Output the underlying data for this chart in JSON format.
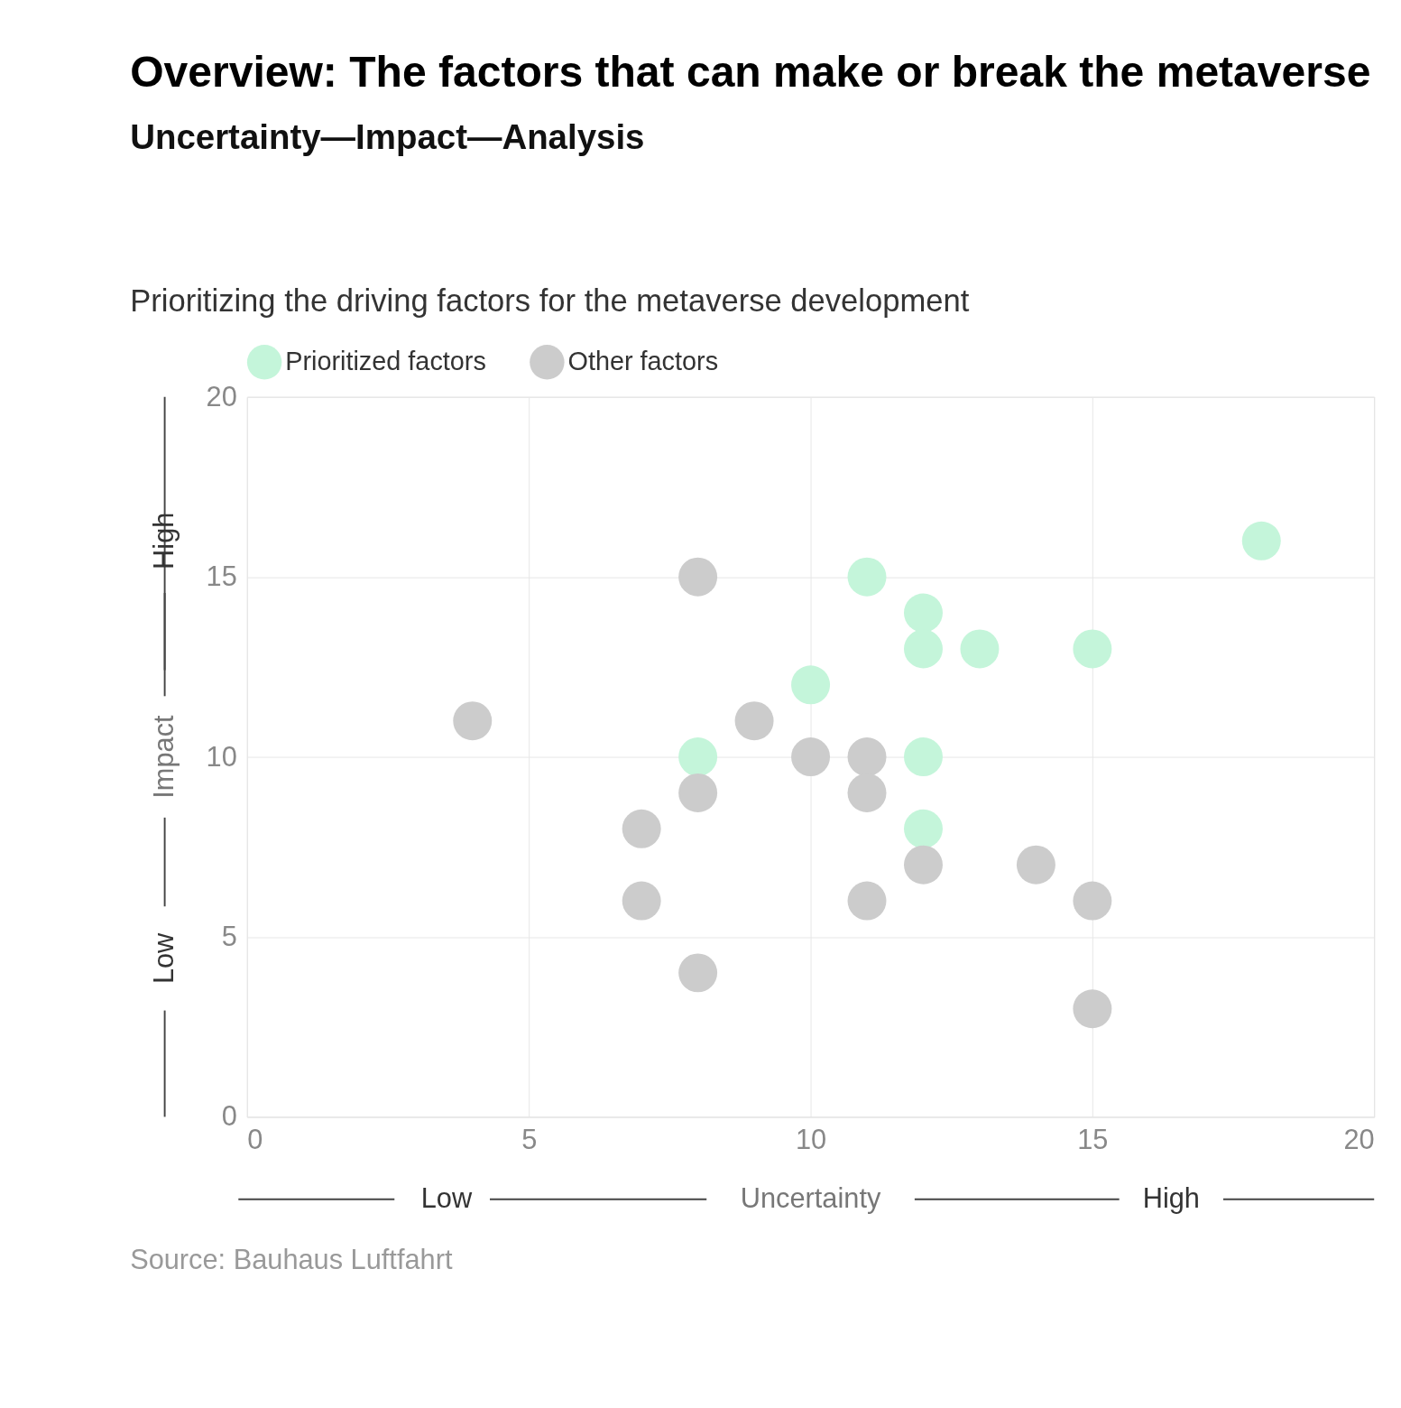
{
  "chart_data": {
    "type": "scatter",
    "title": "Overview: The factors that can make or break the metaverse",
    "subtitle": "Uncertainty—Impact—Analysis",
    "xlabel": "Uncertainty",
    "ylabel": "Impact",
    "annotations": [
      "Prioritizing the driving factors for the metaverse development",
      "Low",
      "High",
      "Low",
      "High",
      "Source: Bauhaus Luftfahrt"
    ],
    "series": [
      {
        "name": "Prioritized factors",
        "color": "#c4f5da",
        "x": [
          11,
          12,
          12,
          13,
          15,
          10,
          8,
          12,
          12,
          18
        ],
        "values": [
          15,
          14,
          13,
          13,
          13,
          12,
          10,
          10,
          8,
          16
        ]
      },
      {
        "name": "Other factors",
        "color": "#cccccc",
        "x": [
          8,
          4,
          9,
          10,
          11,
          8,
          11,
          7,
          7,
          12,
          14,
          11,
          15,
          8,
          15
        ],
        "values": [
          15,
          11,
          11,
          10,
          10,
          9,
          9,
          8,
          6,
          7,
          7,
          6,
          6,
          4,
          3
        ]
      }
    ],
    "xlim": [
      0,
      20
    ],
    "ylim": [
      0,
      20
    ],
    "xticks": [
      0,
      5,
      10,
      15,
      20
    ],
    "yticks": [
      0,
      5,
      10,
      15,
      20
    ],
    "grid": true,
    "legend": "top left",
    "marker": "circle"
  }
}
